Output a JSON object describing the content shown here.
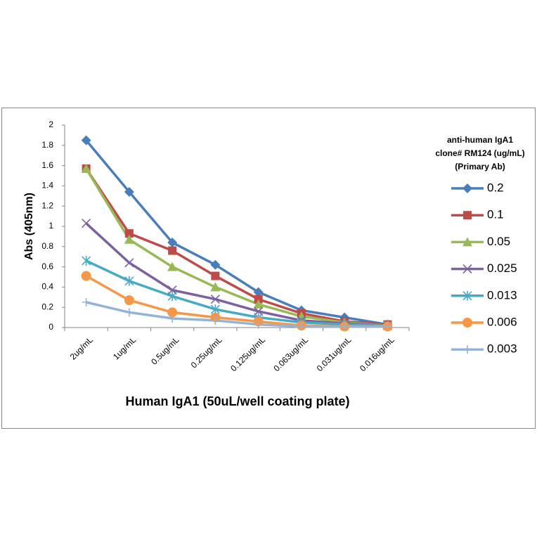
{
  "chart_data": {
    "type": "line",
    "x_label": "Human IgA1 (50uL/well coating plate)",
    "y_label": "Abs (405nm)",
    "legend_title": [
      "anti-human IgA1",
      "clone# RM124 (ug/mL)",
      "(Primary Ab)"
    ],
    "legend_position": "right",
    "categories": [
      "2ug/mL",
      "1ug/mL",
      "0.5ug/mL",
      "0.25ug/mL",
      "0.125ug/mL",
      "0.063ug/mL",
      "0.031ug/mL",
      "0.016ug/mL"
    ],
    "ylim": [
      0,
      2
    ],
    "yticks": [
      0,
      0.2,
      0.4,
      0.6,
      0.8,
      1,
      1.2,
      1.4,
      1.6,
      1.8,
      2
    ],
    "grid": false,
    "series": [
      {
        "name": "0.2",
        "color": "#4a7ebb",
        "marker": "diamond",
        "values": [
          1.85,
          1.34,
          0.84,
          0.62,
          0.35,
          0.17,
          0.1,
          0.03
        ]
      },
      {
        "name": "0.1",
        "color": "#be4b48",
        "marker": "square",
        "values": [
          1.57,
          0.93,
          0.76,
          0.51,
          0.28,
          0.14,
          0.06,
          0.03
        ]
      },
      {
        "name": "0.05",
        "color": "#98b954",
        "marker": "triangle",
        "values": [
          1.57,
          0.87,
          0.6,
          0.4,
          0.23,
          0.11,
          0.05,
          0.02
        ]
      },
      {
        "name": "0.025",
        "color": "#7d60a0",
        "marker": "x",
        "values": [
          1.03,
          0.64,
          0.37,
          0.28,
          0.16,
          0.07,
          0.04,
          0.02
        ]
      },
      {
        "name": "0.013",
        "color": "#46aac5",
        "marker": "star",
        "values": [
          0.66,
          0.46,
          0.31,
          0.18,
          0.1,
          0.05,
          0.03,
          0.02
        ]
      },
      {
        "name": "0.006",
        "color": "#f79646",
        "marker": "circle",
        "values": [
          0.51,
          0.27,
          0.15,
          0.1,
          0.06,
          0.02,
          0.01,
          0.01
        ]
      },
      {
        "name": "0.003",
        "color": "#95b3d7",
        "marker": "plus",
        "values": [
          0.25,
          0.15,
          0.09,
          0.07,
          0.03,
          0.01,
          0.01,
          0.01
        ]
      }
    ]
  }
}
